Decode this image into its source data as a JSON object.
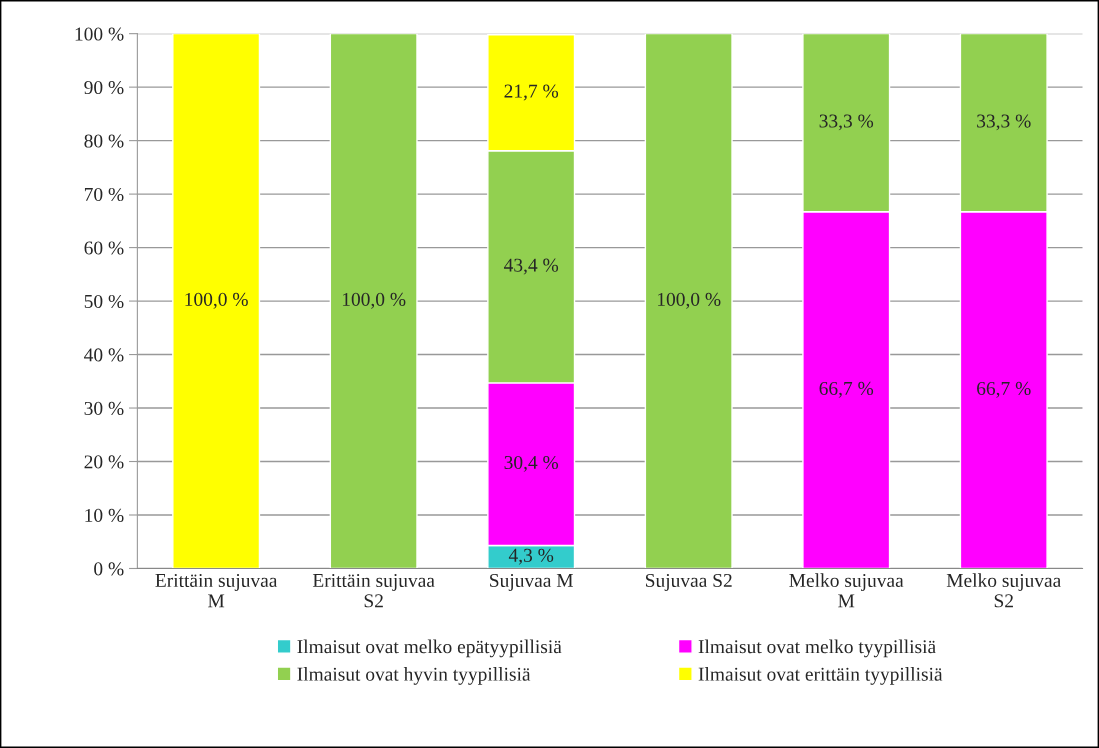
{
  "chart_data": {
    "type": "bar",
    "stacked": true,
    "categories": [
      "Erittäin sujuvaa M",
      "Erittäin sujuvaa S2",
      "Sujuvaa M",
      "Sujuvaa S2",
      "Melko sujuvaa M",
      "Melko sujuvaa S2"
    ],
    "series": [
      {
        "name": "Ilmaisut ovat melko epätyypillisiä",
        "color": "#33cccc",
        "values": [
          null,
          null,
          4.3,
          null,
          null,
          null
        ],
        "value_labels": [
          null,
          null,
          "4,3 %",
          null,
          null,
          null
        ]
      },
      {
        "name": "Ilmaisut ovat melko tyypillisiä",
        "color": "#ff00ff",
        "values": [
          null,
          null,
          30.4,
          null,
          66.7,
          66.7
        ],
        "value_labels": [
          null,
          null,
          "30,4 %",
          null,
          "66,7 %",
          "66,7 %"
        ]
      },
      {
        "name": "Ilmaisut ovat hyvin tyypillisiä",
        "color": "#92d050",
        "values": [
          null,
          100,
          43.4,
          100,
          33.3,
          33.3
        ],
        "value_labels": [
          null,
          "100,0 %",
          "43,4 %",
          "100,0 %",
          "33,3 %",
          "33,3 %"
        ]
      },
      {
        "name": "Ilmaisut ovat erittäin tyypillisiä",
        "color": "#ffff00",
        "values": [
          100,
          null,
          21.7,
          null,
          null,
          null
        ],
        "value_labels": [
          "100,0 %",
          null,
          "21,7 %",
          null,
          null,
          null
        ]
      }
    ],
    "ylim": [
      0,
      100
    ],
    "yticks": [
      {
        "value": 0,
        "label": "0 %"
      },
      {
        "value": 10,
        "label": "10 %"
      },
      {
        "value": 20,
        "label": "20 %"
      },
      {
        "value": 30,
        "label": "30 %"
      },
      {
        "value": 40,
        "label": "40 %"
      },
      {
        "value": 50,
        "label": "50 %"
      },
      {
        "value": 60,
        "label": "60 %"
      },
      {
        "value": 70,
        "label": "70 %"
      },
      {
        "value": 80,
        "label": "80 %"
      },
      {
        "value": 90,
        "label": "90 %"
      },
      {
        "value": 100,
        "label": "100 %"
      }
    ],
    "grid": "y",
    "legend": "bottom"
  }
}
